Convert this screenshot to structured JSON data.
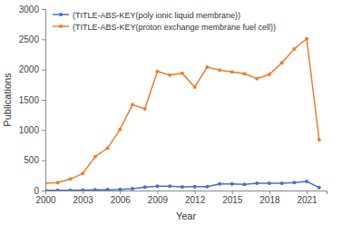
{
  "chart_data": {
    "type": "line",
    "x_label": "Year",
    "y_label": "Publications",
    "x": [
      2000,
      2001,
      2002,
      2003,
      2004,
      2005,
      2006,
      2007,
      2008,
      2009,
      2010,
      2011,
      2012,
      2013,
      2014,
      2015,
      2016,
      2017,
      2018,
      2019,
      2020,
      2021,
      2022
    ],
    "series": [
      {
        "name": "(TITLE-ABS-KEY(poly ionic liquid membrane))",
        "color": "#4472c4",
        "marker": "circle",
        "values": [
          2,
          3,
          5,
          7,
          10,
          15,
          20,
          30,
          55,
          70,
          70,
          60,
          65,
          65,
          110,
          110,
          100,
          120,
          120,
          120,
          130,
          150,
          50
        ]
      },
      {
        "name": "(TITLE-ABS-KEY(proton exchange membrane fuel cell))",
        "color": "#ed7d31",
        "marker": "circle",
        "values": [
          120,
          130,
          190,
          280,
          560,
          700,
          1010,
          1420,
          1350,
          1970,
          1910,
          1940,
          1710,
          2040,
          1990,
          1960,
          1930,
          1850,
          1920,
          2110,
          2340,
          2510,
          840
        ]
      }
    ],
    "xlim": [
      2000,
      2022.6
    ],
    "xticks": [
      2000,
      2003,
      2006,
      2009,
      2012,
      2015,
      2018,
      2021
    ],
    "ylim": [
      0,
      3000
    ],
    "yticks": [
      0,
      500,
      1000,
      1500,
      2000,
      2500,
      3000
    ],
    "grid": false,
    "legend": "upper left"
  }
}
